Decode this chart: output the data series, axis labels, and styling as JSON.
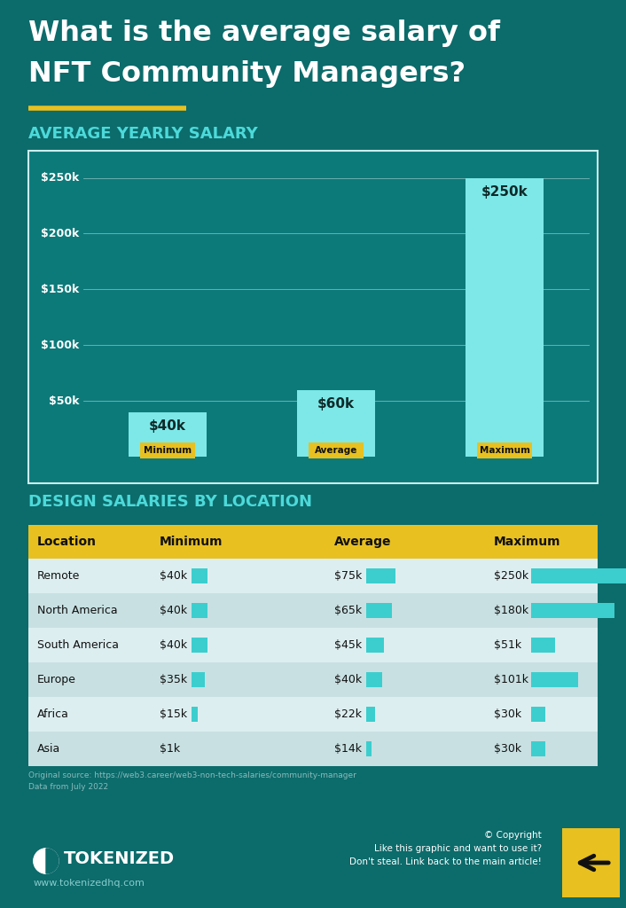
{
  "bg_color": "#0c6b6b",
  "title_line1": "What is the average salary of",
  "title_line2": "NFT Community Managers?",
  "title_color": "#ffffff",
  "underline_color": "#e8c020",
  "section1_title": "AVERAGE YEARLY SALARY",
  "section1_color": "#4dd9d9",
  "bar_chart_bg": "#0d7a7a",
  "bar_color": "#7ee8e8",
  "bar_labels": [
    "Minimum",
    "Average",
    "Maximum"
  ],
  "bar_values": [
    40,
    60,
    250
  ],
  "bar_label_values": [
    "$40k",
    "$60k",
    "$250k"
  ],
  "bar_label_bg": "#e8c020",
  "bar_label_text": "#111111",
  "ytick_labels": [
    "$50k",
    "$100k",
    "$150k",
    "$200k",
    "$250k"
  ],
  "ytick_values": [
    50,
    100,
    150,
    200,
    250
  ],
  "y_max": 260,
  "chart_border_color": "#cceeee",
  "section2_title": "DESIGN SALARIES BY LOCATION",
  "section2_color": "#4dd9d9",
  "table_header_bg": "#e8c020",
  "table_header_text": "#111111",
  "table_row_bg1": "#ddeef0",
  "table_row_bg2": "#c8e0e2",
  "table_text": "#111111",
  "table_bar_color": "#3ccece",
  "table_headers": [
    "Location",
    "Minimum",
    "Average",
    "Maximum"
  ],
  "table_locations": [
    "Remote",
    "North America",
    "South America",
    "Europe",
    "Africa",
    "Asia"
  ],
  "table_min": [
    40,
    40,
    40,
    35,
    15,
    1
  ],
  "table_avg": [
    75,
    65,
    45,
    40,
    22,
    14
  ],
  "table_max": [
    250,
    180,
    51,
    101,
    30,
    30
  ],
  "table_min_str": [
    "$40k",
    "$40k",
    "$40k",
    "$35k",
    "$15k",
    "$1k"
  ],
  "table_avg_str": [
    "$75k",
    "$65k",
    "$45k",
    "$40k",
    "$22k",
    "$14k"
  ],
  "table_max_str": [
    "$250k",
    "$180k",
    "$51k",
    "$101k",
    "$30k",
    "$30k"
  ],
  "table_max_bar": 250,
  "source_text": "Original source: https://web3.career/web3-non-tech-salaries/community-manager\nData from July 2022",
  "footer_brand": "TOKENIZED",
  "footer_url": "www.tokenizedhq.com",
  "footer_copyright": "© Copyright\nLike this graphic and want to use it?\nDon't steal. Link back to the main article!",
  "arrow_bg": "#e8c020"
}
